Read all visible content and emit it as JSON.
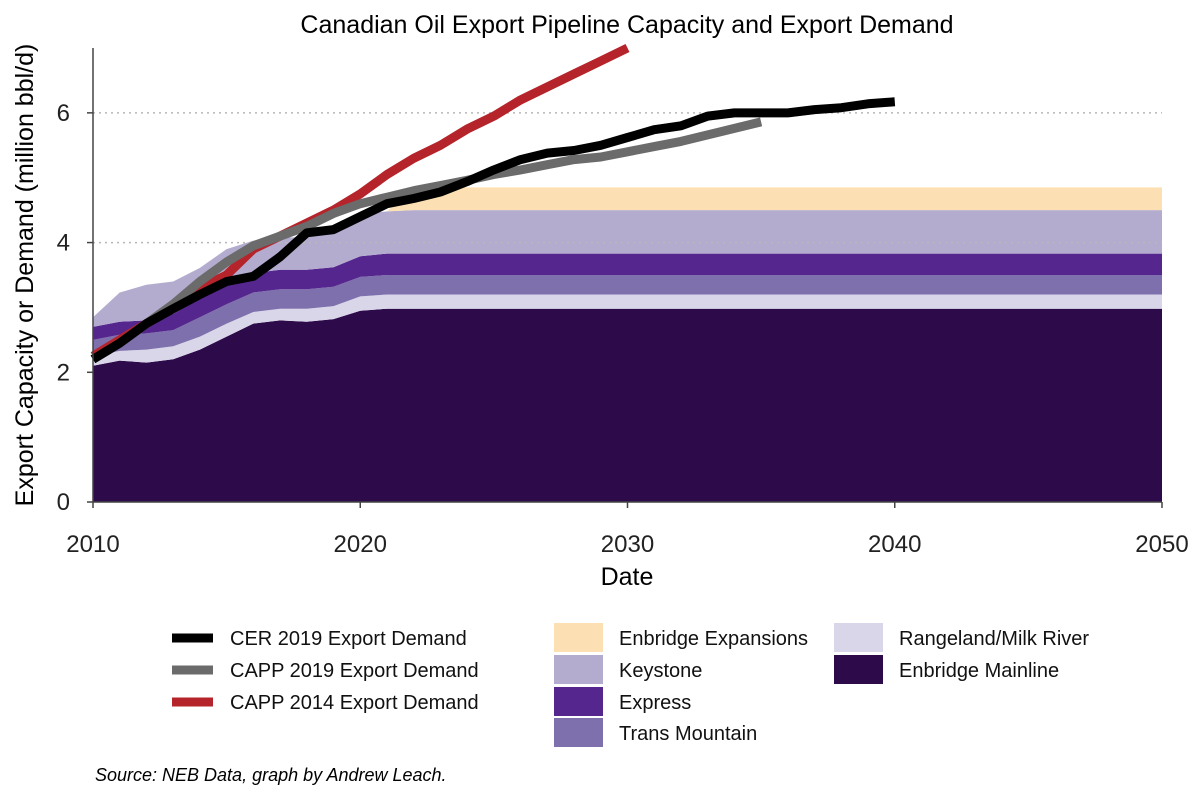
{
  "chart_data": {
    "type": "area",
    "title": "Canadian Oil Export Pipeline Capacity and Export Demand",
    "xlabel": "Date",
    "ylabel": "Export Capacity or Demand (million bbl/d)",
    "source": "Source: NEB Data, graph by Andrew Leach.",
    "xlim": [
      2010,
      2050
    ],
    "ylim": [
      0,
      7
    ],
    "x_ticks": [
      "2010",
      "2020",
      "2030",
      "2040",
      "2050"
    ],
    "y_ticks": [
      "0",
      "2",
      "4",
      "6"
    ],
    "grid": "dotted horizontal at 4 and 6",
    "legend_position": "bottom",
    "capacity_years": [
      2010,
      2011,
      2012,
      2013,
      2014,
      2015,
      2016,
      2017,
      2018,
      2019,
      2020,
      2021,
      2022,
      2030,
      2040,
      2050
    ],
    "capacity_stack": [
      {
        "name": "Enbridge Mainline",
        "color": "#2d0a4a",
        "values": [
          2.1,
          2.18,
          2.15,
          2.2,
          2.35,
          2.55,
          2.75,
          2.8,
          2.78,
          2.82,
          2.95,
          2.98,
          2.98,
          2.98,
          2.98,
          2.98
        ]
      },
      {
        "name": "Rangeland/Milk River",
        "color": "#d9d6e9",
        "values": [
          0.15,
          0.15,
          0.2,
          0.2,
          0.2,
          0.2,
          0.18,
          0.18,
          0.2,
          0.2,
          0.22,
          0.22,
          0.22,
          0.22,
          0.22,
          0.22
        ]
      },
      {
        "name": "Trans Mountain",
        "color": "#7e6fad",
        "values": [
          0.25,
          0.25,
          0.25,
          0.25,
          0.3,
          0.3,
          0.3,
          0.3,
          0.3,
          0.3,
          0.3,
          0.3,
          0.3,
          0.3,
          0.3,
          0.3
        ]
      },
      {
        "name": "Express",
        "color": "#55278e",
        "values": [
          0.2,
          0.2,
          0.2,
          0.25,
          0.28,
          0.3,
          0.3,
          0.3,
          0.3,
          0.3,
          0.32,
          0.33,
          0.33,
          0.33,
          0.33,
          0.33
        ]
      },
      {
        "name": "Keystone",
        "color": "#b3accf",
        "values": [
          0.15,
          0.45,
          0.55,
          0.5,
          0.48,
          0.55,
          0.5,
          0.5,
          0.5,
          0.62,
          0.65,
          0.65,
          0.67,
          0.67,
          0.67,
          0.67
        ]
      },
      {
        "name": "Enbridge Expansions",
        "color": "#fce0b4",
        "values": [
          0,
          0,
          0,
          0,
          0,
          0,
          0,
          0,
          0,
          0,
          0,
          0,
          0.35,
          0.35,
          0.35,
          0.35
        ]
      }
    ],
    "demand_series": [
      {
        "name": "CAPP 2014 Export Demand",
        "color": "#b5242a",
        "x": [
          2010,
          2011,
          2012,
          2013,
          2014,
          2015,
          2016,
          2017,
          2018,
          2019,
          2020,
          2021,
          2022,
          2023,
          2024,
          2025,
          2026,
          2027,
          2028,
          2029,
          2030
        ],
        "y": [
          2.25,
          2.5,
          2.75,
          3.0,
          3.3,
          3.5,
          3.9,
          4.1,
          4.3,
          4.5,
          4.75,
          5.05,
          5.3,
          5.5,
          5.75,
          5.95,
          6.2,
          6.4,
          6.6,
          6.8,
          7.0
        ]
      },
      {
        "name": "CAPP 2019 Export Demand",
        "color": "#6b6b6b",
        "x": [
          2010,
          2011,
          2012,
          2013,
          2014,
          2015,
          2016,
          2017,
          2018,
          2019,
          2020,
          2021,
          2022,
          2023,
          2024,
          2025,
          2026,
          2027,
          2028,
          2029,
          2030,
          2031,
          2032,
          2033,
          2034,
          2035
        ],
        "y": [
          2.2,
          2.45,
          2.75,
          3.05,
          3.4,
          3.7,
          3.95,
          4.1,
          4.25,
          4.45,
          4.6,
          4.7,
          4.8,
          4.88,
          4.96,
          5.05,
          5.12,
          5.2,
          5.28,
          5.32,
          5.4,
          5.48,
          5.56,
          5.66,
          5.76,
          5.86
        ]
      },
      {
        "name": "CER 2019 Export Demand",
        "color": "#000000",
        "x": [
          2010,
          2011,
          2012,
          2013,
          2014,
          2015,
          2016,
          2017,
          2018,
          2019,
          2020,
          2021,
          2022,
          2023,
          2024,
          2025,
          2026,
          2027,
          2028,
          2029,
          2030,
          2031,
          2032,
          2033,
          2034,
          2035,
          2036,
          2037,
          2038,
          2039,
          2040
        ],
        "y": [
          2.2,
          2.45,
          2.75,
          2.98,
          3.2,
          3.4,
          3.48,
          3.78,
          4.15,
          4.2,
          4.4,
          4.6,
          4.68,
          4.78,
          4.94,
          5.12,
          5.28,
          5.38,
          5.42,
          5.5,
          5.62,
          5.74,
          5.8,
          5.95,
          6.0,
          6.0,
          6.0,
          6.05,
          6.08,
          6.14,
          6.17
        ]
      }
    ],
    "legend": {
      "lines": [
        "CER 2019 Export Demand",
        "CAPP 2019 Export Demand",
        "CAPP 2014 Export Demand"
      ],
      "areas_col1": [
        "Enbridge Expansions",
        "Keystone",
        "Express",
        "Trans Mountain"
      ],
      "areas_col2": [
        "Rangeland/Milk River",
        "Enbridge Mainline"
      ]
    }
  }
}
